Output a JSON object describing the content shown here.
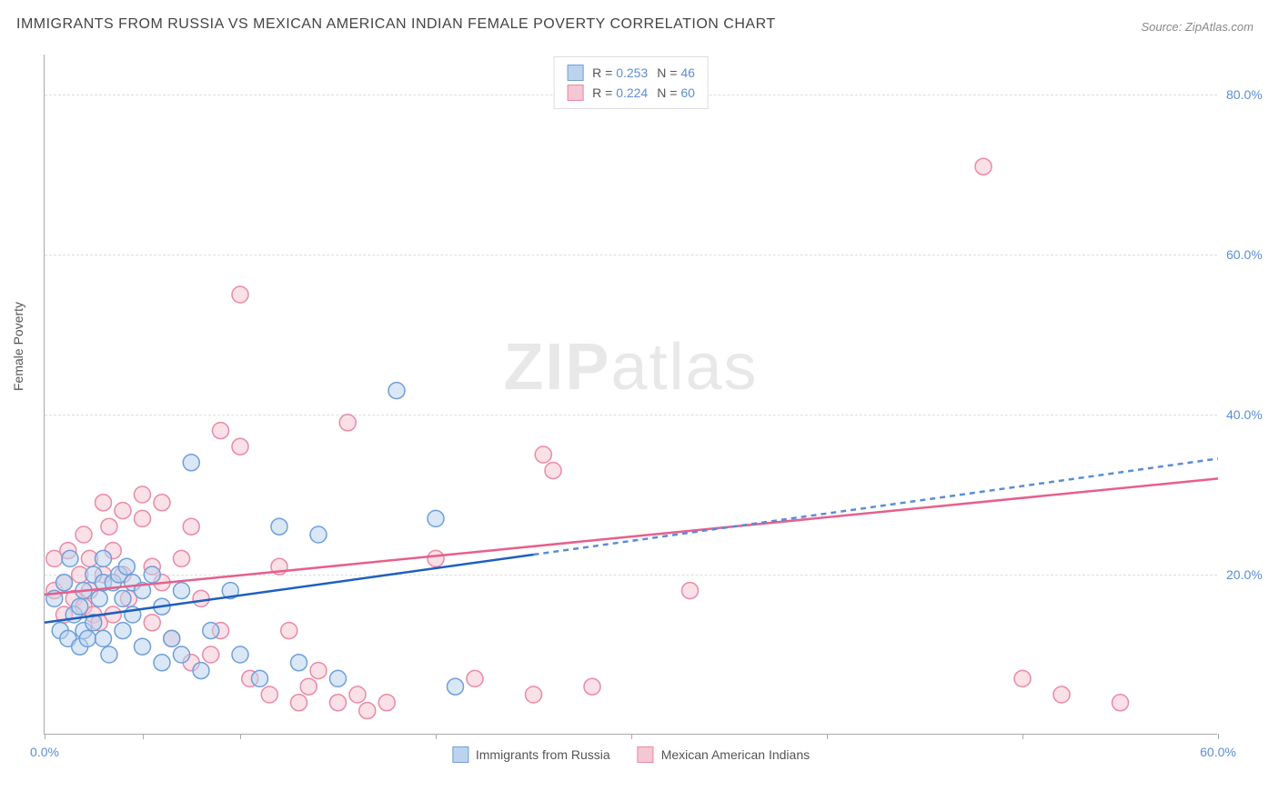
{
  "title": "IMMIGRANTS FROM RUSSIA VS MEXICAN AMERICAN INDIAN FEMALE POVERTY CORRELATION CHART",
  "source_prefix": "Source: ",
  "source_name": "ZipAtlas.com",
  "ylabel": "Female Poverty",
  "watermark_a": "ZIP",
  "watermark_b": "atlas",
  "chart": {
    "type": "scatter",
    "background_color": "#ffffff",
    "grid_color": "#dddddd",
    "axis_color": "#aaaaaa",
    "tick_label_color": "#5b8dd6",
    "label_color": "#555555",
    "title_color": "#444444",
    "x_range": [
      0,
      60
    ],
    "y_range": [
      0,
      85
    ],
    "y_ticks": [
      20,
      40,
      60,
      80
    ],
    "y_tick_labels": [
      "20.0%",
      "40.0%",
      "60.0%",
      "80.0%"
    ],
    "x_ticks": [
      0,
      5,
      10,
      20,
      30,
      40,
      50,
      60
    ],
    "x_first_label": "0.0%",
    "x_last_label": "60.0%",
    "marker_radius": 9,
    "marker_stroke_width": 1.5,
    "trend_line_width": 2.5,
    "series": [
      {
        "id": "russia",
        "name": "Immigrants from Russia",
        "fill": "#bcd3ef",
        "stroke": "#6f9fd8",
        "fill_opacity": 0.55,
        "trend_color": "#1f5fbf",
        "trend_dash_color": "#5b8dd6",
        "R": "0.253",
        "N": "46",
        "trend_solid": {
          "x1": 0,
          "y1": 14,
          "x2": 25,
          "y2": 22.5
        },
        "trend_dash": {
          "x1": 25,
          "y1": 22.5,
          "x2": 60,
          "y2": 34.5
        },
        "points": [
          [
            0.5,
            17
          ],
          [
            0.8,
            13
          ],
          [
            1,
            19
          ],
          [
            1.2,
            12
          ],
          [
            1.3,
            22
          ],
          [
            1.5,
            15
          ],
          [
            1.8,
            16
          ],
          [
            1.8,
            11
          ],
          [
            2,
            13
          ],
          [
            2,
            18
          ],
          [
            2.2,
            12
          ],
          [
            2.5,
            20
          ],
          [
            2.5,
            14
          ],
          [
            2.8,
            17
          ],
          [
            3,
            19
          ],
          [
            3,
            12
          ],
          [
            3,
            22
          ],
          [
            3.3,
            10
          ],
          [
            3.5,
            19
          ],
          [
            3.8,
            20
          ],
          [
            4,
            17
          ],
          [
            4,
            13
          ],
          [
            4.2,
            21
          ],
          [
            4.5,
            15
          ],
          [
            4.5,
            19
          ],
          [
            5,
            18
          ],
          [
            5,
            11
          ],
          [
            5.5,
            20
          ],
          [
            6,
            16
          ],
          [
            6,
            9
          ],
          [
            6.5,
            12
          ],
          [
            7,
            10
          ],
          [
            7,
            18
          ],
          [
            7.5,
            34
          ],
          [
            8,
            8
          ],
          [
            8.5,
            13
          ],
          [
            9.5,
            18
          ],
          [
            10,
            10
          ],
          [
            11,
            7
          ],
          [
            12,
            26
          ],
          [
            13,
            9
          ],
          [
            14,
            25
          ],
          [
            15,
            7
          ],
          [
            18,
            43
          ],
          [
            20,
            27
          ],
          [
            21,
            6
          ]
        ]
      },
      {
        "id": "mexican",
        "name": "Mexican American Indians",
        "fill": "#f5c6d3",
        "stroke": "#e88aa6",
        "fill_opacity": 0.55,
        "trend_color": "#e75f8b",
        "R": "0.224",
        "N": "60",
        "trend_solid": {
          "x1": 0,
          "y1": 17.5,
          "x2": 60,
          "y2": 32
        },
        "points": [
          [
            0.5,
            18
          ],
          [
            0.5,
            22
          ],
          [
            1,
            19
          ],
          [
            1,
            15
          ],
          [
            1.2,
            23
          ],
          [
            1.5,
            17
          ],
          [
            1.8,
            20
          ],
          [
            2,
            25
          ],
          [
            2,
            16
          ],
          [
            2.3,
            22
          ],
          [
            2.3,
            18
          ],
          [
            2.5,
            15
          ],
          [
            2.8,
            14
          ],
          [
            3,
            29
          ],
          [
            3,
            20
          ],
          [
            3.3,
            26
          ],
          [
            3.5,
            15
          ],
          [
            3.5,
            23
          ],
          [
            4,
            28
          ],
          [
            4,
            20
          ],
          [
            4.3,
            17
          ],
          [
            5,
            27
          ],
          [
            5,
            30
          ],
          [
            5.5,
            21
          ],
          [
            5.5,
            14
          ],
          [
            6,
            19
          ],
          [
            6,
            29
          ],
          [
            6.5,
            12
          ],
          [
            7,
            22
          ],
          [
            7.5,
            26
          ],
          [
            7.5,
            9
          ],
          [
            8,
            17
          ],
          [
            8.5,
            10
          ],
          [
            9,
            38
          ],
          [
            9,
            13
          ],
          [
            10,
            36
          ],
          [
            10,
            55
          ],
          [
            10.5,
            7
          ],
          [
            11.5,
            5
          ],
          [
            12,
            21
          ],
          [
            12.5,
            13
          ],
          [
            13,
            4
          ],
          [
            13.5,
            6
          ],
          [
            14,
            8
          ],
          [
            15,
            4
          ],
          [
            15.5,
            39
          ],
          [
            16,
            5
          ],
          [
            16.5,
            3
          ],
          [
            17.5,
            4
          ],
          [
            20,
            22
          ],
          [
            22,
            7
          ],
          [
            25,
            5
          ],
          [
            25.5,
            35
          ],
          [
            26,
            33
          ],
          [
            28,
            6
          ],
          [
            33,
            18
          ],
          [
            48,
            71
          ],
          [
            50,
            7
          ],
          [
            52,
            5
          ],
          [
            55,
            4
          ]
        ]
      }
    ]
  },
  "legend_top": {
    "R_label": "R =",
    "N_label": "N ="
  }
}
